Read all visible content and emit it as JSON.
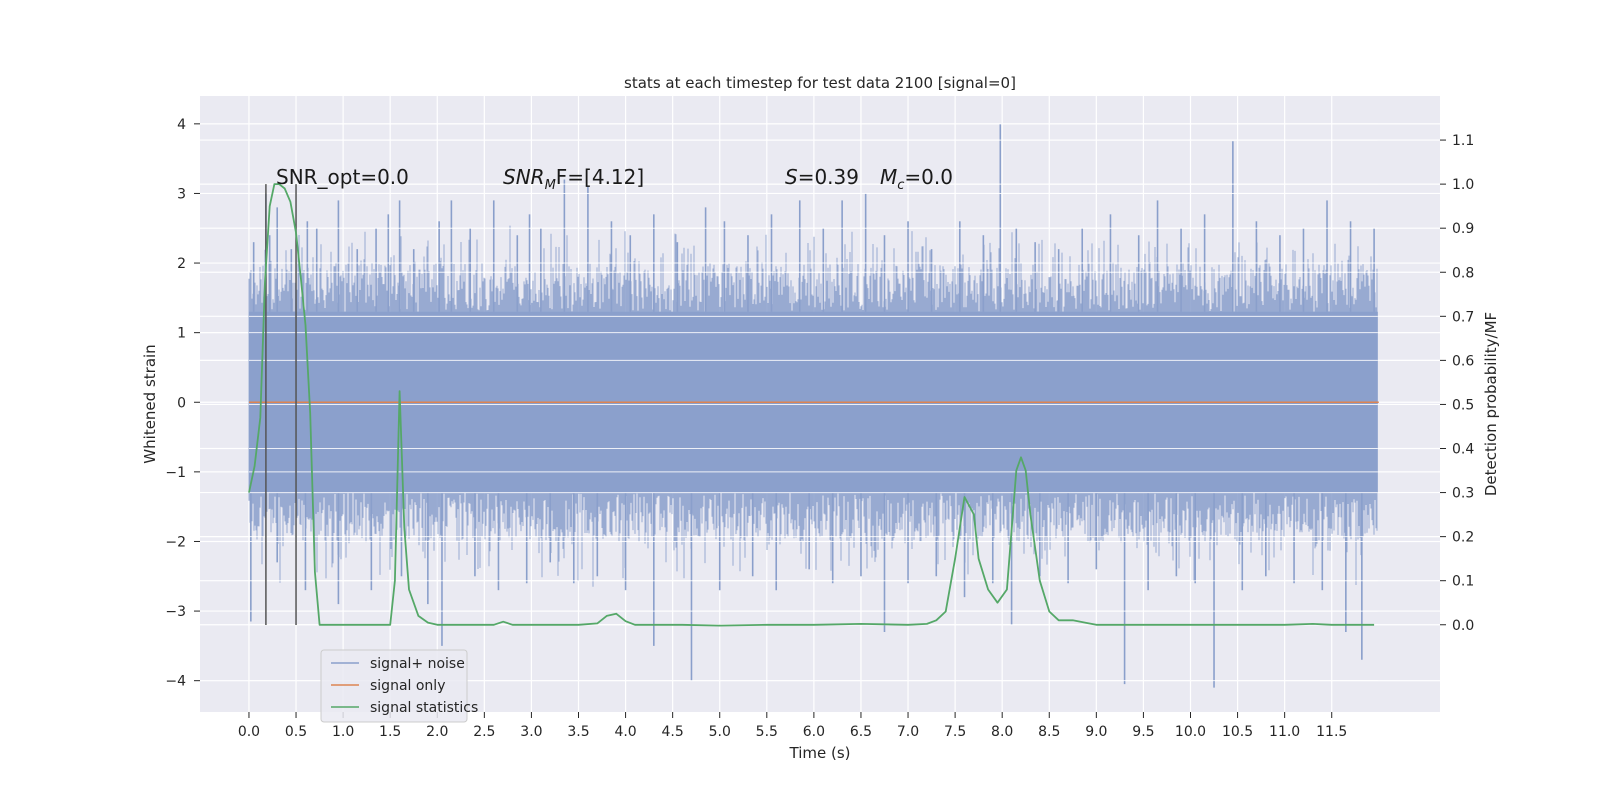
{
  "chart_data": {
    "type": "line",
    "title": "stats at each timestep for test data 2100 [signal=0]",
    "xlabel": "Time (s)",
    "ylabel_left": "Whitened strain",
    "ylabel_right": "Detection probability/MF",
    "xlim": [
      -0.52,
      12.65
    ],
    "ylim_left": [
      -4.45,
      4.4
    ],
    "ylim_right": [
      -0.198,
      1.2
    ],
    "grid": true,
    "legend_position": "lower-left",
    "x_ticks": [
      "0.0",
      "0.5",
      "1.0",
      "1.5",
      "2.0",
      "2.5",
      "3.0",
      "3.5",
      "4.0",
      "4.5",
      "5.0",
      "5.5",
      "6.0",
      "6.5",
      "7.0",
      "7.5",
      "8.0",
      "8.5",
      "9.0",
      "9.5",
      "10.0",
      "10.5",
      "11.0",
      "11.5"
    ],
    "y_ticks_left": [
      "4",
      "3",
      "2",
      "1",
      "0",
      "−1",
      "−2",
      "−3",
      "−4"
    ],
    "y_ticks_right": [
      "1.1",
      "1.0",
      "0.9",
      "0.8",
      "0.7",
      "0.6",
      "0.5",
      "0.4",
      "0.3",
      "0.2",
      "0.1",
      "0.0"
    ],
    "annotations": {
      "snr_opt": "SNR_opt=0.0",
      "snr_mf_prefix": "SNR",
      "snr_mf_sub": "M",
      "snr_mf_rest": "F=[4.12]",
      "s_label": "S",
      "s_value": "=0.39",
      "mc_label": "M",
      "mc_sub": "c",
      "mc_value": "=0.0"
    },
    "vlines_x": [
      0.18,
      0.5
    ],
    "series": [
      {
        "name": "signal+ noise",
        "color": "#8a9fcb",
        "envelope": {
          "x_range": [
            0.0,
            11.99
          ],
          "typical_band": [
            -1.3,
            1.3
          ],
          "upper_spikes": [
            [
              0.05,
              2.3
            ],
            [
              0.18,
              3.0
            ],
            [
              0.22,
              2.4
            ],
            [
              0.3,
              2.8
            ],
            [
              0.45,
              2.2
            ],
            [
              0.62,
              2.6
            ],
            [
              0.72,
              2.5
            ],
            [
              0.95,
              2.9
            ],
            [
              1.15,
              2.2
            ],
            [
              1.35,
              2.5
            ],
            [
              1.48,
              2.7
            ],
            [
              1.6,
              2.9
            ],
            [
              1.75,
              2.2
            ],
            [
              2.02,
              2.6
            ],
            [
              2.15,
              2.9
            ],
            [
              2.35,
              2.5
            ],
            [
              2.6,
              2.9
            ],
            [
              2.85,
              2.4
            ],
            [
              2.98,
              2.7
            ],
            [
              3.1,
              2.5
            ],
            [
              3.35,
              3.2
            ],
            [
              3.6,
              3.1
            ],
            [
              3.85,
              2.6
            ],
            [
              4.05,
              2.4
            ],
            [
              4.3,
              2.7
            ],
            [
              4.55,
              2.3
            ],
            [
              4.85,
              2.8
            ],
            [
              5.05,
              2.6
            ],
            [
              5.3,
              2.4
            ],
            [
              5.55,
              2.7
            ],
            [
              5.85,
              2.9
            ],
            [
              6.1,
              2.5
            ],
            [
              6.3,
              2.9
            ],
            [
              6.55,
              3.0
            ],
            [
              6.75,
              2.4
            ],
            [
              7.0,
              2.6
            ],
            [
              7.25,
              2.2
            ],
            [
              7.55,
              2.6
            ],
            [
              7.8,
              2.4
            ],
            [
              7.98,
              4.0
            ],
            [
              8.15,
              2.5
            ],
            [
              8.35,
              2.3
            ],
            [
              8.6,
              2.2
            ],
            [
              8.85,
              2.5
            ],
            [
              9.15,
              2.7
            ],
            [
              9.45,
              2.4
            ],
            [
              9.65,
              2.9
            ],
            [
              9.9,
              2.5
            ],
            [
              10.15,
              2.7
            ],
            [
              10.45,
              3.75
            ],
            [
              10.7,
              2.6
            ],
            [
              10.95,
              2.4
            ],
            [
              11.2,
              2.5
            ],
            [
              11.45,
              2.9
            ],
            [
              11.7,
              2.6
            ],
            [
              11.95,
              2.5
            ]
          ],
          "lower_spikes": [
            [
              0.02,
              -3.15
            ],
            [
              0.3,
              -2.3
            ],
            [
              0.6,
              -2.7
            ],
            [
              0.95,
              -2.9
            ],
            [
              1.3,
              -2.7
            ],
            [
              1.62,
              -2.5
            ],
            [
              1.9,
              -2.9
            ],
            [
              2.05,
              -3.5
            ],
            [
              2.4,
              -2.5
            ],
            [
              2.65,
              -2.7
            ],
            [
              2.95,
              -2.6
            ],
            [
              3.2,
              -2.3
            ],
            [
              3.45,
              -2.6
            ],
            [
              3.7,
              -2.5
            ],
            [
              4.0,
              -2.7
            ],
            [
              4.3,
              -3.5
            ],
            [
              4.7,
              -4.0
            ],
            [
              5.0,
              -2.7
            ],
            [
              5.35,
              -2.5
            ],
            [
              5.6,
              -2.7
            ],
            [
              5.95,
              -2.4
            ],
            [
              6.2,
              -2.6
            ],
            [
              6.5,
              -2.5
            ],
            [
              6.75,
              -3.3
            ],
            [
              7.0,
              -2.6
            ],
            [
              7.3,
              -2.5
            ],
            [
              7.6,
              -2.8
            ],
            [
              7.9,
              -2.6
            ],
            [
              8.1,
              -3.2
            ],
            [
              8.4,
              -2.5
            ],
            [
              8.7,
              -2.6
            ],
            [
              9.0,
              -2.4
            ],
            [
              9.3,
              -4.05
            ],
            [
              9.55,
              -2.7
            ],
            [
              9.85,
              -2.5
            ],
            [
              10.05,
              -2.6
            ],
            [
              10.25,
              -4.1
            ],
            [
              10.55,
              -2.7
            ],
            [
              10.8,
              -2.5
            ],
            [
              11.1,
              -2.6
            ],
            [
              11.4,
              -2.7
            ],
            [
              11.65,
              -3.3
            ],
            [
              11.82,
              -3.7
            ]
          ]
        }
      },
      {
        "name": "signal only",
        "color": "#dd8452",
        "x": [
          0.0,
          12.0
        ],
        "y": [
          0.0,
          0.0
        ]
      },
      {
        "name": "signal statistics",
        "color": "#55a868",
        "axis": "right",
        "x": [
          0.0,
          0.06,
          0.12,
          0.17,
          0.22,
          0.27,
          0.32,
          0.38,
          0.44,
          0.5,
          0.55,
          0.6,
          0.65,
          0.7,
          0.75,
          0.82,
          0.9,
          1.0,
          1.2,
          1.4,
          1.5,
          1.55,
          1.6,
          1.65,
          1.7,
          1.8,
          1.9,
          2.0,
          2.2,
          2.4,
          2.6,
          2.7,
          2.8,
          3.0,
          3.5,
          3.7,
          3.8,
          3.9,
          4.0,
          4.1,
          4.3,
          4.6,
          5.0,
          5.5,
          6.0,
          6.5,
          7.0,
          7.2,
          7.3,
          7.4,
          7.5,
          7.6,
          7.65,
          7.7,
          7.75,
          7.85,
          7.95,
          8.05,
          8.15,
          8.2,
          8.25,
          8.3,
          8.4,
          8.5,
          8.6,
          8.75,
          8.9,
          9.0,
          9.5,
          10.0,
          10.5,
          11.0,
          11.3,
          11.5,
          11.75,
          11.95
        ],
        "y": [
          0.3,
          0.36,
          0.47,
          0.78,
          0.95,
          1.0,
          1.0,
          0.99,
          0.96,
          0.89,
          0.79,
          0.68,
          0.48,
          0.12,
          0.0,
          0.0,
          0.0,
          0.0,
          0.0,
          0.0,
          0.0,
          0.1,
          0.53,
          0.22,
          0.08,
          0.02,
          0.005,
          0.0,
          0.0,
          0.0,
          0.0,
          0.007,
          0.0,
          0.0,
          0.0,
          0.003,
          0.02,
          0.025,
          0.008,
          0.0,
          0.0,
          0.0,
          -0.002,
          0.0,
          0.0,
          0.002,
          0.0,
          0.002,
          0.01,
          0.03,
          0.15,
          0.29,
          0.27,
          0.25,
          0.15,
          0.08,
          0.05,
          0.08,
          0.35,
          0.38,
          0.35,
          0.25,
          0.1,
          0.03,
          0.01,
          0.01,
          0.004,
          0.0,
          0.0,
          0.0,
          0.0,
          0.0,
          0.002,
          0.0,
          0.0,
          0.0
        ]
      }
    ]
  }
}
